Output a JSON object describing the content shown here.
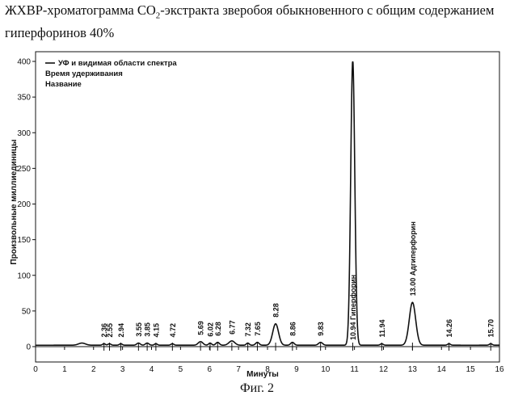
{
  "figure": {
    "title_part1": "ЖХВР-хроматограмма CO",
    "title_sub": "2",
    "title_part2": "-экстракта зверобоя обыкновенного с общим содержанием гиперфоринов 40%",
    "caption": "Фиг. 2"
  },
  "chart_data": {
    "type": "line",
    "xlabel": "Минуты",
    "ylabel": "Произвольные миллиединицы",
    "xlim": [
      0,
      16
    ],
    "ylim": [
      0,
      400
    ],
    "x_ticks": [
      0,
      1,
      2,
      3,
      4,
      5,
      6,
      7,
      8,
      9,
      10,
      11,
      12,
      13,
      14,
      15,
      16
    ],
    "y_ticks": [
      0,
      50,
      100,
      150,
      200,
      250,
      300,
      350,
      400
    ],
    "legend": {
      "placement": "top-left",
      "entries": [
        "УФ и видимая области спектра",
        "Время удерживания",
        "Название"
      ]
    },
    "baseline": 2,
    "peaks": [
      {
        "rt": 1.6,
        "height": 3,
        "width": 0.12,
        "label": ""
      },
      {
        "rt": 2.36,
        "height": 2,
        "width": 0.05,
        "label": "2.36"
      },
      {
        "rt": 2.55,
        "height": 2,
        "width": 0.05,
        "label": "2.55"
      },
      {
        "rt": 2.94,
        "height": 2,
        "width": 0.05,
        "label": "2.94"
      },
      {
        "rt": 3.55,
        "height": 3,
        "width": 0.06,
        "label": "3.55"
      },
      {
        "rt": 3.85,
        "height": 3,
        "width": 0.06,
        "label": "3.85"
      },
      {
        "rt": 4.15,
        "height": 2,
        "width": 0.05,
        "label": "4.15"
      },
      {
        "rt": 4.72,
        "height": 2,
        "width": 0.05,
        "label": "4.72"
      },
      {
        "rt": 5.69,
        "height": 5,
        "width": 0.08,
        "label": "5.69"
      },
      {
        "rt": 6.02,
        "height": 3,
        "width": 0.05,
        "label": "6.02"
      },
      {
        "rt": 6.28,
        "height": 4,
        "width": 0.06,
        "label": "6.28"
      },
      {
        "rt": 6.77,
        "height": 6,
        "width": 0.1,
        "label": "6.77"
      },
      {
        "rt": 7.32,
        "height": 3,
        "width": 0.05,
        "label": "7.32"
      },
      {
        "rt": 7.65,
        "height": 4,
        "width": 0.06,
        "label": "7.65"
      },
      {
        "rt": 8.28,
        "height": 30,
        "width": 0.1,
        "label": "8.28"
      },
      {
        "rt": 8.86,
        "height": 4,
        "width": 0.06,
        "label": "8.86"
      },
      {
        "rt": 9.83,
        "height": 4,
        "width": 0.07,
        "label": "9.83"
      },
      {
        "rt": 10.94,
        "height": 400,
        "width": 0.07,
        "label": "10.94 Гиперфорин"
      },
      {
        "rt": 11.94,
        "height": 2,
        "width": 0.05,
        "label": "11.94"
      },
      {
        "rt": 13.0,
        "height": 60,
        "width": 0.11,
        "label": "13.00 Адгиперфорин"
      },
      {
        "rt": 14.26,
        "height": 2,
        "width": 0.05,
        "label": "14.26"
      },
      {
        "rt": 15.7,
        "height": 2,
        "width": 0.05,
        "label": "15.70"
      }
    ]
  }
}
